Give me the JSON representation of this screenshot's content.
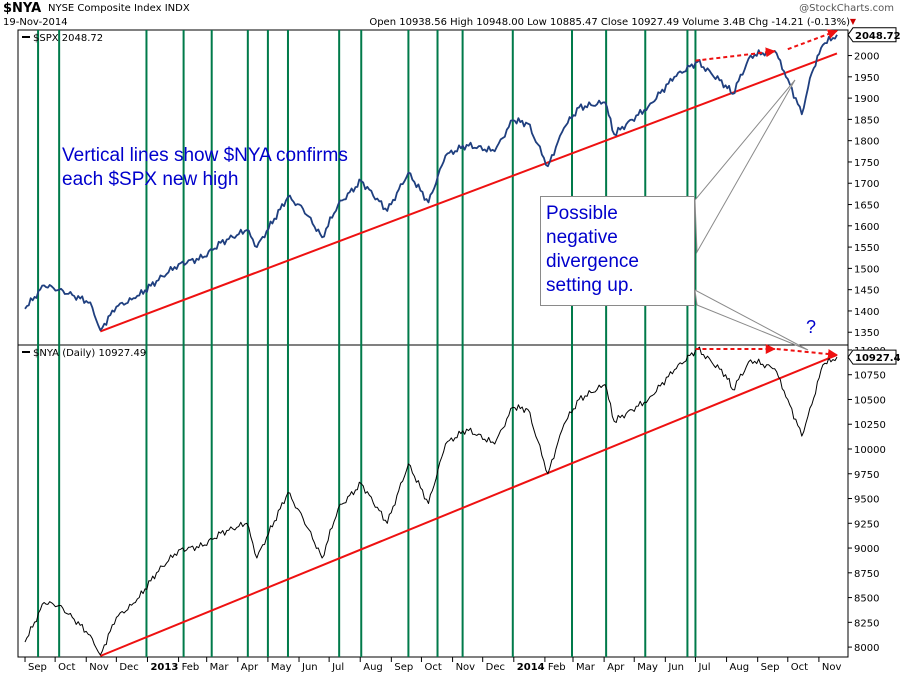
{
  "header": {
    "symbol": "$NYA",
    "name": "NYSE Composite Index INDX",
    "date": "19-Nov-2014",
    "stats": "Open 10938.56 High 10948.00 Low 10885.47 Close 10927.49 Volume 3.4B Chg -14.21 (-0.13%)",
    "brand": "@StockCharts.com",
    "down_marker": "▼"
  },
  "annotations": {
    "left_text": "Vertical lines show $NYA confirms each $SPX new high",
    "box_text": "Possible negative divergence setting up.",
    "question": "?"
  },
  "colors": {
    "spx_line": "#1f3f7f",
    "nya_line": "#000000",
    "trend": "#ee1111",
    "verticals": "#007a4a",
    "text_blue": "#0000cc",
    "price_box": "#000000"
  },
  "chart_data": [
    {
      "type": "line",
      "legend": "$SPX 2048.72",
      "last_value_label": "2048.72",
      "ylim": [
        1320,
        2060
      ],
      "y_ticks": [
        1350,
        1400,
        1450,
        1500,
        1550,
        1600,
        1650,
        1700,
        1750,
        1800,
        1850,
        1900,
        1950,
        2000
      ],
      "series": [
        {
          "x": [
            "2012-09-01",
            "2012-09-20",
            "2012-10-05",
            "2012-10-20",
            "2012-11-05",
            "2012-11-15",
            "2012-12-01",
            "2012-12-20",
            "2013-01-10",
            "2013-02-01",
            "2013-02-25",
            "2013-03-15",
            "2013-04-10",
            "2013-04-20",
            "2013-05-21",
            "2013-06-05",
            "2013-06-24",
            "2013-07-10",
            "2013-08-02",
            "2013-08-28",
            "2013-09-18",
            "2013-10-08",
            "2013-10-25",
            "2013-11-15",
            "2013-12-13",
            "2013-12-31",
            "2014-01-15",
            "2014-02-04",
            "2014-02-20",
            "2014-03-07",
            "2014-04-02",
            "2014-04-11",
            "2014-05-15",
            "2014-06-10",
            "2014-07-03",
            "2014-07-31",
            "2014-08-07",
            "2014-08-25",
            "2014-09-18",
            "2014-10-01",
            "2014-10-15",
            "2014-10-25",
            "2014-11-05",
            "2014-11-19"
          ],
          "values": [
            1405,
            1460,
            1450,
            1435,
            1420,
            1355,
            1410,
            1430,
            1470,
            1510,
            1525,
            1560,
            1590,
            1550,
            1668,
            1640,
            1573,
            1650,
            1705,
            1635,
            1725,
            1655,
            1765,
            1790,
            1775,
            1848,
            1840,
            1740,
            1830,
            1878,
            1890,
            1815,
            1880,
            1950,
            1985,
            1930,
            1910,
            2000,
            2011,
            1945,
            1862,
            1960,
            2025,
            2048.72
          ]
        }
      ],
      "annotations": [
        "Vertical lines show $NYA confirms each $SPX new high",
        "Possible negative divergence setting up."
      ]
    },
    {
      "type": "line",
      "legend": "$NYA (Daily) 10927.49",
      "last_value_label": "10927.49",
      "ylim": [
        7900,
        11050
      ],
      "y_ticks": [
        8000,
        8250,
        8500,
        8750,
        9000,
        9250,
        9500,
        9750,
        10000,
        10250,
        10500,
        10750,
        11000
      ],
      "series": [
        {
          "x": [
            "2012-09-01",
            "2012-09-20",
            "2012-10-05",
            "2012-10-20",
            "2012-11-05",
            "2012-11-15",
            "2012-12-01",
            "2012-12-20",
            "2013-01-10",
            "2013-02-01",
            "2013-02-25",
            "2013-03-15",
            "2013-04-10",
            "2013-04-20",
            "2013-05-21",
            "2013-06-05",
            "2013-06-24",
            "2013-07-10",
            "2013-08-02",
            "2013-08-28",
            "2013-09-18",
            "2013-10-08",
            "2013-10-25",
            "2013-11-15",
            "2013-12-13",
            "2013-12-31",
            "2014-01-15",
            "2014-02-04",
            "2014-02-20",
            "2014-03-07",
            "2014-04-02",
            "2014-04-11",
            "2014-05-15",
            "2014-06-10",
            "2014-07-03",
            "2014-07-31",
            "2014-08-07",
            "2014-08-25",
            "2014-09-18",
            "2014-10-01",
            "2014-10-15",
            "2014-10-25",
            "2014-11-05",
            "2014-11-19"
          ],
          "values": [
            8050,
            8450,
            8420,
            8280,
            8120,
            7920,
            8300,
            8450,
            8750,
            8980,
            9020,
            9150,
            9250,
            8900,
            9560,
            9300,
            8900,
            9400,
            9650,
            9250,
            9850,
            9450,
            10050,
            10200,
            10050,
            10420,
            10400,
            9750,
            10250,
            10500,
            10650,
            10280,
            10500,
            10800,
            11010,
            10750,
            10600,
            10900,
            10810,
            10500,
            10130,
            10450,
            10850,
            10927.49
          ]
        }
      ]
    }
  ],
  "x_axis": {
    "tick_labels": [
      {
        "label": "Sep",
        "bold": false
      },
      {
        "label": "Oct",
        "bold": false
      },
      {
        "label": "Nov",
        "bold": false
      },
      {
        "label": "Dec",
        "bold": false
      },
      {
        "label": "2013",
        "bold": true
      },
      {
        "label": "Feb",
        "bold": false
      },
      {
        "label": "Mar",
        "bold": false
      },
      {
        "label": "Apr",
        "bold": false
      },
      {
        "label": "May",
        "bold": false
      },
      {
        "label": "Jun",
        "bold": false
      },
      {
        "label": "Jul",
        "bold": false
      },
      {
        "label": "Aug",
        "bold": false
      },
      {
        "label": "Sep",
        "bold": false
      },
      {
        "label": "Oct",
        "bold": false
      },
      {
        "label": "Nov",
        "bold": false
      },
      {
        "label": "Dec",
        "bold": false
      },
      {
        "label": "2014",
        "bold": true
      },
      {
        "label": "Feb",
        "bold": false
      },
      {
        "label": "Mar",
        "bold": false
      },
      {
        "label": "Apr",
        "bold": false
      },
      {
        "label": "May",
        "bold": false
      },
      {
        "label": "Jun",
        "bold": false
      },
      {
        "label": "Jul",
        "bold": false
      },
      {
        "label": "Aug",
        "bold": false
      },
      {
        "label": "Sep",
        "bold": false
      },
      {
        "label": "Oct",
        "bold": false
      },
      {
        "label": "Nov",
        "bold": false
      }
    ],
    "range": [
      "2012-08-25",
      "2014-11-30"
    ]
  },
  "confirmation_dates": [
    "2012-09-14",
    "2012-10-05",
    "2012-12-31",
    "2013-02-06",
    "2013-03-06",
    "2013-04-11",
    "2013-05-01",
    "2013-05-21",
    "2013-07-11",
    "2013-08-02",
    "2013-09-18",
    "2013-10-17",
    "2013-11-11",
    "2013-12-31",
    "2014-02-28",
    "2014-04-03",
    "2014-05-12",
    "2014-06-23",
    "2014-07-01"
  ],
  "trendlines": [
    {
      "panel": 0,
      "from": [
        "2012-11-15",
        1352
      ],
      "to": [
        "2014-11-19",
        2005
      ]
    },
    {
      "panel": 1,
      "from": [
        "2012-11-15",
        7910
      ],
      "to": [
        "2014-11-19",
        10950
      ]
    }
  ],
  "divergence_arrows": [
    {
      "panel": 0,
      "from": [
        "2014-07-01",
        1988
      ],
      "to": [
        "2014-09-18",
        2010
      ]
    },
    {
      "panel": 0,
      "from": [
        "2014-10-01",
        2015
      ],
      "to": [
        "2014-11-19",
        2058
      ]
    },
    {
      "panel": 1,
      "from": [
        "2014-07-01",
        11010
      ],
      "to": [
        "2014-09-18",
        11010
      ]
    },
    {
      "panel": 1,
      "from": [
        "2014-09-20",
        11010
      ],
      "to": [
        "2014-11-19",
        10950
      ]
    }
  ]
}
